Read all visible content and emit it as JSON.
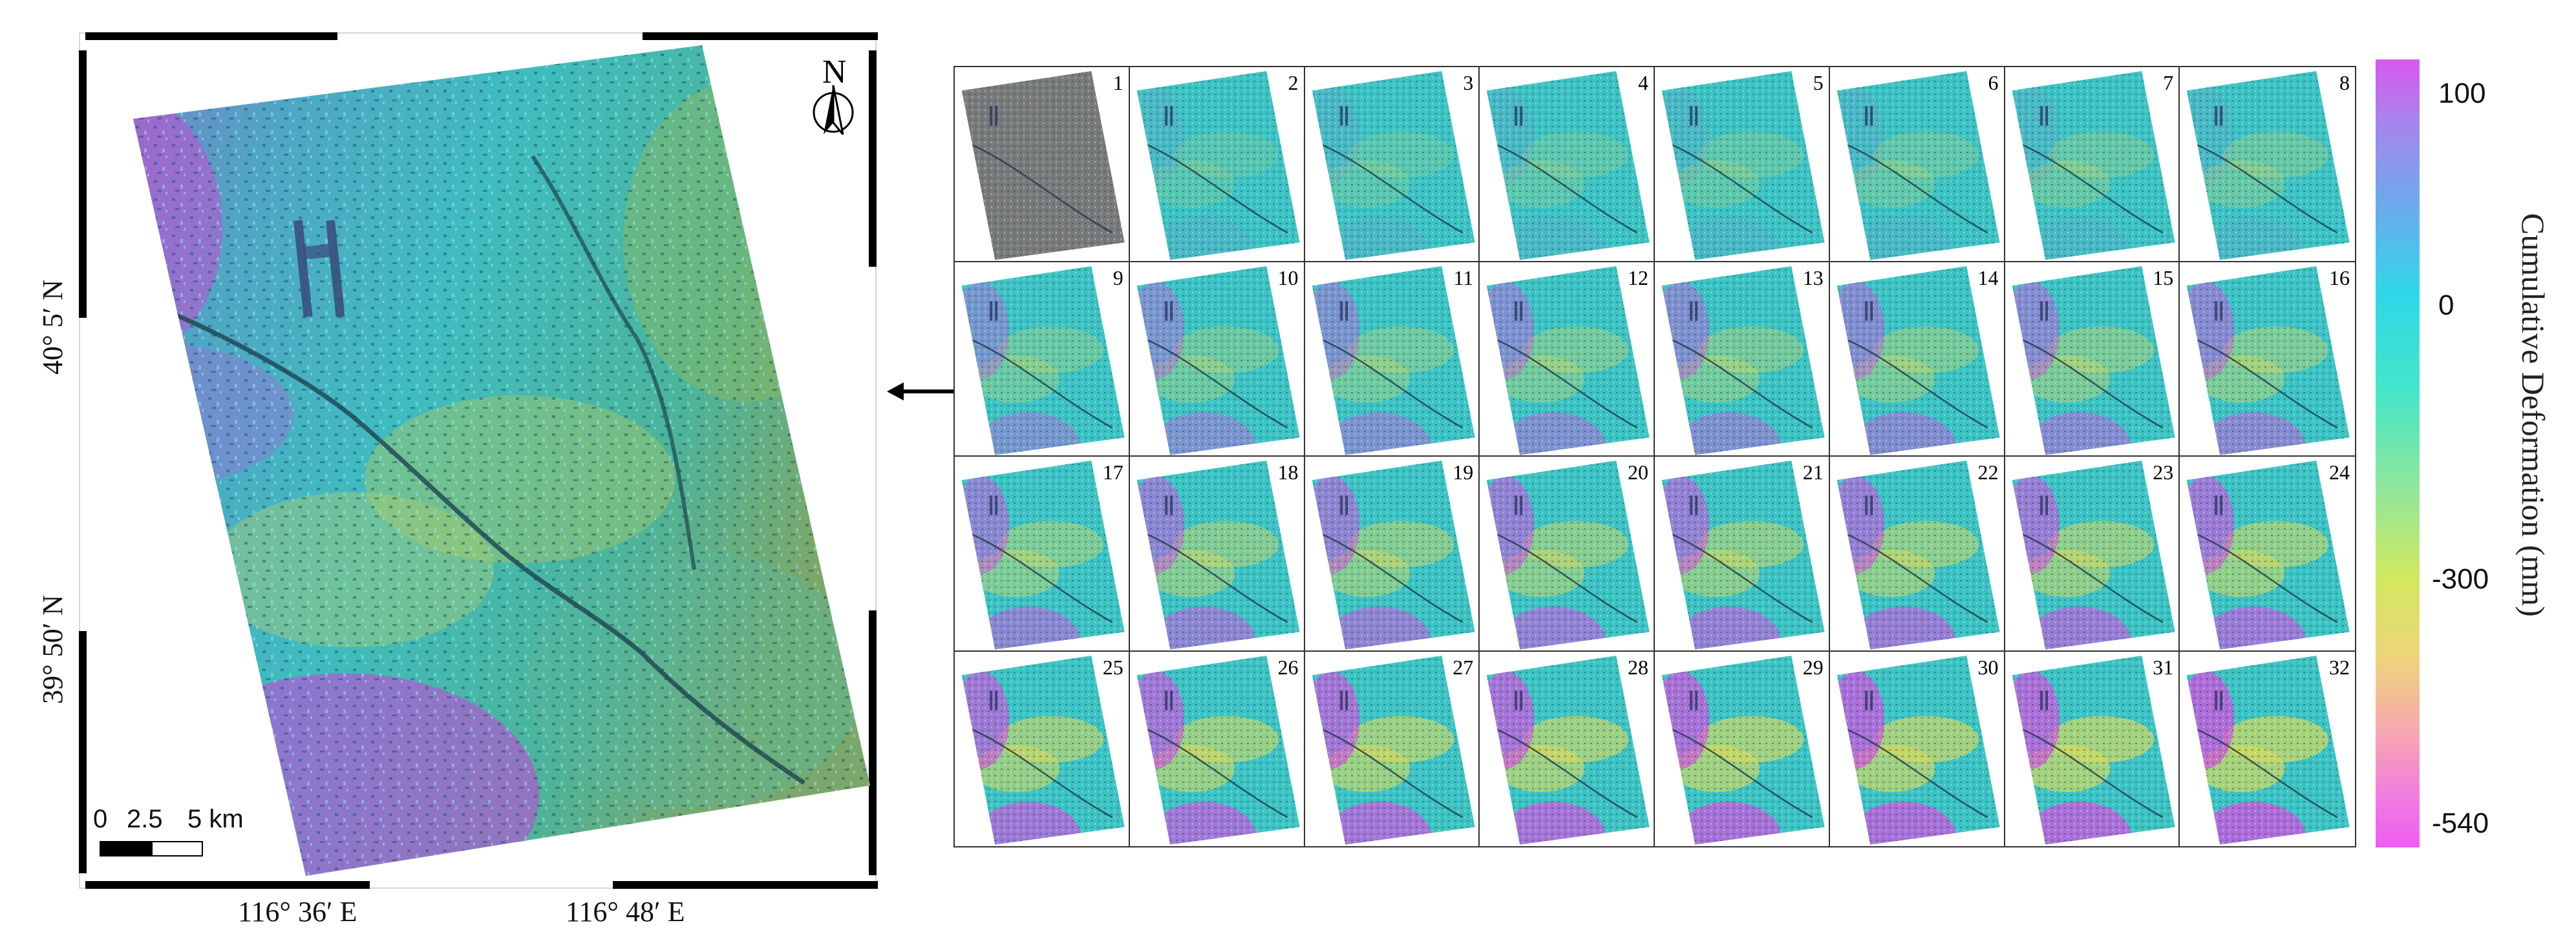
{
  "main_map": {
    "north_label": "N",
    "lat_labels": [
      "40° 5′ N",
      "39° 50′ N"
    ],
    "lon_labels": [
      "116° 36′ E",
      "116° 48′ E"
    ],
    "scale_labels": [
      "0",
      "2.5",
      "5 km"
    ]
  },
  "thumbnails": {
    "labels": [
      "1",
      "2",
      "3",
      "4",
      "5",
      "6",
      "7",
      "8",
      "9",
      "10",
      "11",
      "12",
      "13",
      "14",
      "15",
      "16",
      "17",
      "18",
      "19",
      "20",
      "21",
      "22",
      "23",
      "24",
      "25",
      "26",
      "27",
      "28",
      "29",
      "30",
      "31",
      "32"
    ]
  },
  "colorbar": {
    "title": "Cumulative Deformation (mm)",
    "ticks": [
      "100",
      "0",
      "-300",
      "-540"
    ],
    "colors": [
      "#d858ee",
      "#6ea8ec",
      "#2fd8e8",
      "#d2e85e",
      "#eed47a",
      "#ee5cf0"
    ]
  }
}
